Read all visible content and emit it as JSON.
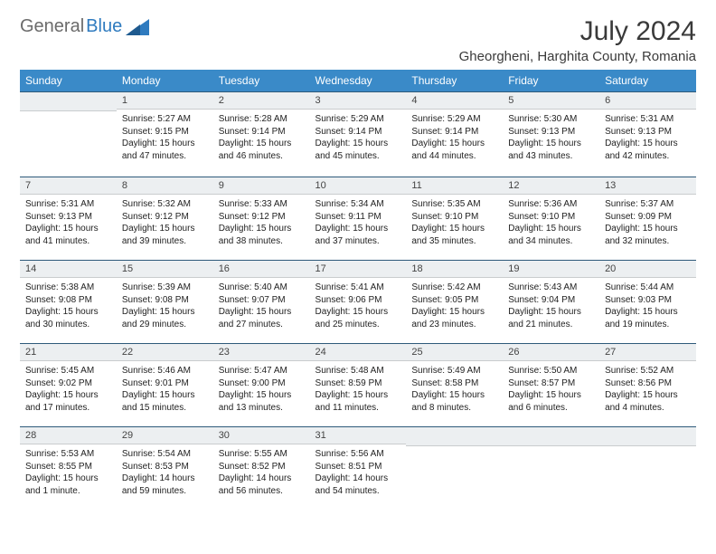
{
  "brand": {
    "part1": "General",
    "part2": "Blue"
  },
  "title": {
    "month": "July 2024",
    "location": "Gheorgheni, Harghita County, Romania"
  },
  "colors": {
    "header_bg": "#3a8ac8",
    "header_text": "#ffffff",
    "dayhdr_bg": "#eceff1",
    "dayhdr_border_top": "#2e5a7a",
    "brand_gray": "#6b6b6b",
    "brand_blue": "#2f7bbf"
  },
  "weekdays": [
    "Sunday",
    "Monday",
    "Tuesday",
    "Wednesday",
    "Thursday",
    "Friday",
    "Saturday"
  ],
  "weeks": [
    [
      {
        "n": "",
        "sr": "",
        "ss": "",
        "dl": ""
      },
      {
        "n": "1",
        "sr": "Sunrise: 5:27 AM",
        "ss": "Sunset: 9:15 PM",
        "dl": "Daylight: 15 hours and 47 minutes."
      },
      {
        "n": "2",
        "sr": "Sunrise: 5:28 AM",
        "ss": "Sunset: 9:14 PM",
        "dl": "Daylight: 15 hours and 46 minutes."
      },
      {
        "n": "3",
        "sr": "Sunrise: 5:29 AM",
        "ss": "Sunset: 9:14 PM",
        "dl": "Daylight: 15 hours and 45 minutes."
      },
      {
        "n": "4",
        "sr": "Sunrise: 5:29 AM",
        "ss": "Sunset: 9:14 PM",
        "dl": "Daylight: 15 hours and 44 minutes."
      },
      {
        "n": "5",
        "sr": "Sunrise: 5:30 AM",
        "ss": "Sunset: 9:13 PM",
        "dl": "Daylight: 15 hours and 43 minutes."
      },
      {
        "n": "6",
        "sr": "Sunrise: 5:31 AM",
        "ss": "Sunset: 9:13 PM",
        "dl": "Daylight: 15 hours and 42 minutes."
      }
    ],
    [
      {
        "n": "7",
        "sr": "Sunrise: 5:31 AM",
        "ss": "Sunset: 9:13 PM",
        "dl": "Daylight: 15 hours and 41 minutes."
      },
      {
        "n": "8",
        "sr": "Sunrise: 5:32 AM",
        "ss": "Sunset: 9:12 PM",
        "dl": "Daylight: 15 hours and 39 minutes."
      },
      {
        "n": "9",
        "sr": "Sunrise: 5:33 AM",
        "ss": "Sunset: 9:12 PM",
        "dl": "Daylight: 15 hours and 38 minutes."
      },
      {
        "n": "10",
        "sr": "Sunrise: 5:34 AM",
        "ss": "Sunset: 9:11 PM",
        "dl": "Daylight: 15 hours and 37 minutes."
      },
      {
        "n": "11",
        "sr": "Sunrise: 5:35 AM",
        "ss": "Sunset: 9:10 PM",
        "dl": "Daylight: 15 hours and 35 minutes."
      },
      {
        "n": "12",
        "sr": "Sunrise: 5:36 AM",
        "ss": "Sunset: 9:10 PM",
        "dl": "Daylight: 15 hours and 34 minutes."
      },
      {
        "n": "13",
        "sr": "Sunrise: 5:37 AM",
        "ss": "Sunset: 9:09 PM",
        "dl": "Daylight: 15 hours and 32 minutes."
      }
    ],
    [
      {
        "n": "14",
        "sr": "Sunrise: 5:38 AM",
        "ss": "Sunset: 9:08 PM",
        "dl": "Daylight: 15 hours and 30 minutes."
      },
      {
        "n": "15",
        "sr": "Sunrise: 5:39 AM",
        "ss": "Sunset: 9:08 PM",
        "dl": "Daylight: 15 hours and 29 minutes."
      },
      {
        "n": "16",
        "sr": "Sunrise: 5:40 AM",
        "ss": "Sunset: 9:07 PM",
        "dl": "Daylight: 15 hours and 27 minutes."
      },
      {
        "n": "17",
        "sr": "Sunrise: 5:41 AM",
        "ss": "Sunset: 9:06 PM",
        "dl": "Daylight: 15 hours and 25 minutes."
      },
      {
        "n": "18",
        "sr": "Sunrise: 5:42 AM",
        "ss": "Sunset: 9:05 PM",
        "dl": "Daylight: 15 hours and 23 minutes."
      },
      {
        "n": "19",
        "sr": "Sunrise: 5:43 AM",
        "ss": "Sunset: 9:04 PM",
        "dl": "Daylight: 15 hours and 21 minutes."
      },
      {
        "n": "20",
        "sr": "Sunrise: 5:44 AM",
        "ss": "Sunset: 9:03 PM",
        "dl": "Daylight: 15 hours and 19 minutes."
      }
    ],
    [
      {
        "n": "21",
        "sr": "Sunrise: 5:45 AM",
        "ss": "Sunset: 9:02 PM",
        "dl": "Daylight: 15 hours and 17 minutes."
      },
      {
        "n": "22",
        "sr": "Sunrise: 5:46 AM",
        "ss": "Sunset: 9:01 PM",
        "dl": "Daylight: 15 hours and 15 minutes."
      },
      {
        "n": "23",
        "sr": "Sunrise: 5:47 AM",
        "ss": "Sunset: 9:00 PM",
        "dl": "Daylight: 15 hours and 13 minutes."
      },
      {
        "n": "24",
        "sr": "Sunrise: 5:48 AM",
        "ss": "Sunset: 8:59 PM",
        "dl": "Daylight: 15 hours and 11 minutes."
      },
      {
        "n": "25",
        "sr": "Sunrise: 5:49 AM",
        "ss": "Sunset: 8:58 PM",
        "dl": "Daylight: 15 hours and 8 minutes."
      },
      {
        "n": "26",
        "sr": "Sunrise: 5:50 AM",
        "ss": "Sunset: 8:57 PM",
        "dl": "Daylight: 15 hours and 6 minutes."
      },
      {
        "n": "27",
        "sr": "Sunrise: 5:52 AM",
        "ss": "Sunset: 8:56 PM",
        "dl": "Daylight: 15 hours and 4 minutes."
      }
    ],
    [
      {
        "n": "28",
        "sr": "Sunrise: 5:53 AM",
        "ss": "Sunset: 8:55 PM",
        "dl": "Daylight: 15 hours and 1 minute."
      },
      {
        "n": "29",
        "sr": "Sunrise: 5:54 AM",
        "ss": "Sunset: 8:53 PM",
        "dl": "Daylight: 14 hours and 59 minutes."
      },
      {
        "n": "30",
        "sr": "Sunrise: 5:55 AM",
        "ss": "Sunset: 8:52 PM",
        "dl": "Daylight: 14 hours and 56 minutes."
      },
      {
        "n": "31",
        "sr": "Sunrise: 5:56 AM",
        "ss": "Sunset: 8:51 PM",
        "dl": "Daylight: 14 hours and 54 minutes."
      },
      {
        "n": "",
        "sr": "",
        "ss": "",
        "dl": ""
      },
      {
        "n": "",
        "sr": "",
        "ss": "",
        "dl": ""
      },
      {
        "n": "",
        "sr": "",
        "ss": "",
        "dl": ""
      }
    ]
  ]
}
